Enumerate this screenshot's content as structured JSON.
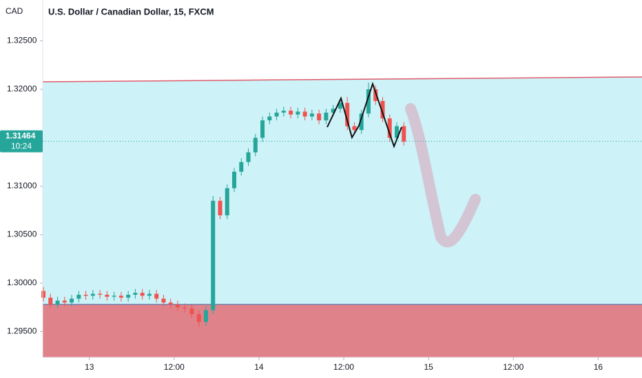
{
  "chart_data": {
    "type": "candlestick",
    "title": "U.S. Dollar / Canadian Dollar, 15, FXCM",
    "currency": "CAD",
    "x": [
      -6.5,
      -5.5,
      -4.5,
      -3.5,
      -2.5,
      -1.5,
      -0.5,
      0.5,
      1.5,
      2.5,
      3.5,
      4.5,
      5.5,
      6.5,
      7.5,
      8.5,
      9.5,
      10.5,
      11.5,
      12.5,
      13.5,
      14.5,
      15.5,
      16.5,
      17.5,
      18.5,
      19.5,
      20.5,
      21.5,
      22.5,
      23.5,
      24.5,
      25.5,
      26.5,
      27.5,
      28.5,
      29.5,
      30.5,
      31.5,
      32.5,
      33.5,
      34.5,
      35.5,
      36.5,
      37.5,
      38.5,
      39.5,
      40.5,
      41.5,
      42.5,
      43.5,
      44.5
    ],
    "open": [
      1.2992,
      1.2985,
      1.2978,
      1.2982,
      1.298,
      1.2984,
      1.2988,
      1.2987,
      1.2989,
      1.2988,
      1.2986,
      1.2987,
      1.2985,
      1.2988,
      1.299,
      1.2987,
      1.2989,
      1.2984,
      1.298,
      1.2978,
      1.2975,
      1.2974,
      1.2968,
      1.296,
      1.2972,
      1.3085,
      1.307,
      1.3098,
      1.3115,
      1.3125,
      1.3135,
      1.315,
      1.3168,
      1.3172,
      1.3176,
      1.3178,
      1.3174,
      1.3177,
      1.3172,
      1.3175,
      1.3168,
      1.3176,
      1.318,
      1.3186,
      1.3162,
      1.3158,
      1.3175,
      1.32,
      1.3188,
      1.317,
      1.315,
      1.3162
    ],
    "high": [
      1.2996,
      1.2989,
      1.2986,
      1.2986,
      1.2988,
      1.2992,
      1.2992,
      1.2993,
      1.2993,
      1.2992,
      1.2991,
      1.2991,
      1.2992,
      1.2994,
      1.2994,
      1.2993,
      1.2993,
      1.2988,
      1.2984,
      1.2982,
      1.2979,
      1.2978,
      1.2972,
      1.2976,
      1.309,
      1.3089,
      1.3102,
      1.3119,
      1.3129,
      1.3139,
      1.3154,
      1.3172,
      1.3176,
      1.318,
      1.3182,
      1.3182,
      1.3181,
      1.3181,
      1.3179,
      1.3179,
      1.318,
      1.3184,
      1.319,
      1.3192,
      1.3166,
      1.3179,
      1.3207,
      1.3204,
      1.3192,
      1.3174,
      1.3166,
      1.3166
    ],
    "low": [
      1.2981,
      1.2974,
      1.2974,
      1.2976,
      1.2976,
      1.298,
      1.2983,
      1.2983,
      1.2984,
      1.2982,
      1.2982,
      1.2981,
      1.2981,
      1.2984,
      1.2983,
      1.2983,
      1.298,
      1.2976,
      1.2974,
      1.2971,
      1.297,
      1.2964,
      1.2955,
      1.2956,
      1.2968,
      1.3066,
      1.3066,
      1.3094,
      1.3111,
      1.3121,
      1.3131,
      1.3146,
      1.3164,
      1.3168,
      1.3172,
      1.317,
      1.317,
      1.3168,
      1.3168,
      1.3164,
      1.3164,
      1.3172,
      1.3176,
      1.3158,
      1.3154,
      1.3154,
      1.3171,
      1.3184,
      1.3166,
      1.3146,
      1.3146,
      1.3142
    ],
    "close": [
      1.2985,
      1.2978,
      1.2982,
      1.298,
      1.2984,
      1.2988,
      1.2987,
      1.2989,
      1.2988,
      1.2986,
      1.2987,
      1.2985,
      1.2988,
      1.299,
      1.2987,
      1.2989,
      1.2984,
      1.298,
      1.2978,
      1.2975,
      1.2974,
      1.2968,
      1.296,
      1.2972,
      1.3085,
      1.307,
      1.3098,
      1.3115,
      1.3125,
      1.3135,
      1.315,
      1.3168,
      1.3172,
      1.3176,
      1.3178,
      1.3174,
      1.3177,
      1.3172,
      1.3175,
      1.3168,
      1.3176,
      1.318,
      1.3186,
      1.3162,
      1.3158,
      1.3175,
      1.32,
      1.3188,
      1.317,
      1.315,
      1.3162,
      1.3146
    ],
    "up_color": "#26a69a",
    "down_color": "#ef5350",
    "xlim": [
      -6.6,
      78.2
    ],
    "ylim": [
      1.29234,
      1.32922
    ],
    "xticks": [
      {
        "value": 0,
        "label": "13"
      },
      {
        "value": 12,
        "label": "12:00"
      },
      {
        "value": 24,
        "label": "14"
      },
      {
        "value": 36,
        "label": "12:00"
      },
      {
        "value": 48,
        "label": "15"
      },
      {
        "value": 60,
        "label": "12:00"
      },
      {
        "value": 72,
        "label": "16"
      }
    ],
    "yticks": [
      {
        "value": 1.295,
        "label": "1.29500"
      },
      {
        "value": 1.3,
        "label": "1.30000"
      },
      {
        "value": 1.305,
        "label": "1.30500"
      },
      {
        "value": 1.31,
        "label": "1.31000"
      },
      {
        "value": 1.315,
        "label": "1.31500"
      },
      {
        "value": 1.32,
        "label": "1.32000"
      },
      {
        "value": 1.325,
        "label": "1.32500"
      }
    ],
    "last_price": {
      "value": 1.31464,
      "label": "1.31464"
    },
    "countdown": "10:24",
    "resistance_line": [
      1.32078,
      1.32128
    ],
    "support_level": 1.29781
  }
}
